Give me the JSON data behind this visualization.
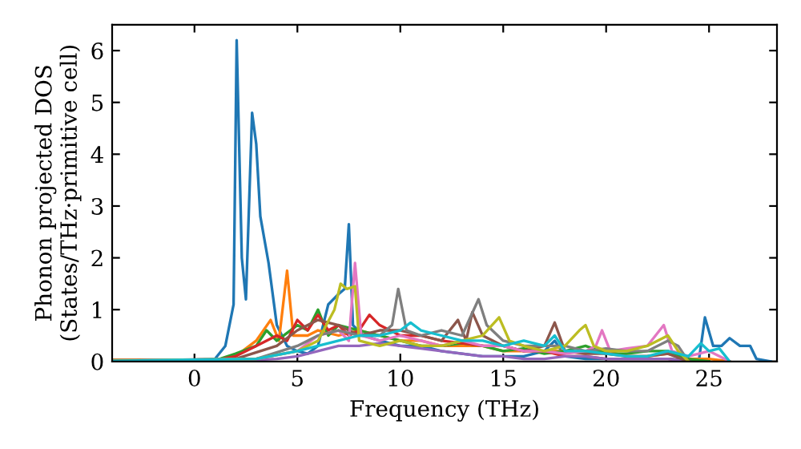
{
  "chart_data": {
    "type": "line",
    "xlabel": "Frequency (THz)",
    "ylabel": "Phonon projected DOS\n(States/THz·primitive cell)",
    "xlim": [
      -4,
      28.3
    ],
    "ylim": [
      0,
      6.5
    ],
    "xticks": [
      0,
      5,
      10,
      15,
      20,
      25
    ],
    "yticks": [
      0,
      1,
      2,
      3,
      4,
      5,
      6
    ],
    "grid": false,
    "legend": false,
    "marker": "none",
    "line_style": "solid",
    "series": [
      {
        "color": "#1f77b4",
        "x": [
          -4,
          0.5,
          1.0,
          1.5,
          1.9,
          2.05,
          2.3,
          2.5,
          2.8,
          3.0,
          3.2,
          3.6,
          4.0,
          4.5,
          5,
          5.5,
          6,
          6.5,
          7,
          7.3,
          7.5,
          7.7,
          8.2,
          9,
          10,
          11,
          12,
          13,
          14,
          15,
          16,
          17,
          17.5,
          18,
          19,
          20,
          22,
          23,
          24,
          24.5,
          24.8,
          25.2,
          25.6,
          26,
          26.5,
          27,
          27.3,
          28
        ],
        "values": [
          0.02,
          0.02,
          0.05,
          0.3,
          1.1,
          6.2,
          2.0,
          1.2,
          4.8,
          4.2,
          2.8,
          1.9,
          0.7,
          0.3,
          0.2,
          0.15,
          0.3,
          1.1,
          1.3,
          1.4,
          2.65,
          0.7,
          0.5,
          0.4,
          0.3,
          0.3,
          0.2,
          0.15,
          0.1,
          0.1,
          0.1,
          0.2,
          0.4,
          0.1,
          0.05,
          0.05,
          0.05,
          0.05,
          0.02,
          0.0,
          0.85,
          0.3,
          0.3,
          0.45,
          0.3,
          0.3,
          0.05,
          0.0
        ]
      },
      {
        "color": "#ff7f0e",
        "x": [
          -4,
          1,
          2,
          3,
          3.7,
          4.1,
          4.5,
          4.8,
          5.5,
          6,
          7,
          8,
          9,
          10,
          11,
          12,
          13,
          14,
          15,
          16,
          17,
          18,
          19,
          20,
          21,
          22,
          23,
          24,
          25,
          26
        ],
        "values": [
          0.03,
          0.03,
          0.1,
          0.4,
          0.8,
          0.4,
          1.75,
          0.5,
          0.5,
          0.6,
          0.5,
          0.6,
          0.5,
          0.4,
          0.4,
          0.3,
          0.3,
          0.3,
          0.2,
          0.2,
          0.2,
          0.2,
          0.15,
          0.2,
          0.1,
          0.1,
          0.15,
          0.05,
          0.05,
          0.0
        ]
      },
      {
        "color": "#2ca02c",
        "x": [
          -4,
          1,
          2,
          3,
          3.5,
          4,
          5,
          5.5,
          6,
          6.5,
          7,
          8,
          9,
          10,
          11,
          12,
          13,
          14,
          15,
          16,
          17,
          18,
          19,
          20,
          21,
          22,
          23,
          24,
          25
        ],
        "values": [
          0.02,
          0.02,
          0.15,
          0.3,
          0.6,
          0.4,
          0.7,
          0.6,
          1.0,
          0.5,
          0.7,
          0.6,
          0.5,
          0.4,
          0.3,
          0.3,
          0.35,
          0.3,
          0.2,
          0.25,
          0.15,
          0.2,
          0.3,
          0.15,
          0.15,
          0.2,
          0.2,
          0.05,
          0.0
        ]
      },
      {
        "color": "#d62728",
        "x": [
          -4,
          1,
          2,
          3,
          3.5,
          4,
          4.5,
          5,
          5.5,
          6,
          6.5,
          7,
          7.5,
          8,
          8.5,
          9,
          9.5,
          10,
          11,
          12,
          13,
          14,
          15,
          16,
          17,
          18,
          19,
          20,
          22,
          23,
          24
        ],
        "values": [
          0.02,
          0.02,
          0.1,
          0.3,
          0.4,
          0.5,
          0.4,
          0.8,
          0.6,
          0.9,
          0.6,
          0.7,
          0.5,
          0.6,
          0.9,
          0.7,
          0.6,
          0.5,
          0.5,
          0.4,
          0.35,
          0.3,
          0.3,
          0.2,
          0.2,
          0.1,
          0.1,
          0.05,
          0.05,
          0.05,
          0.0
        ]
      },
      {
        "color": "#9467bd",
        "x": [
          -4,
          2,
          4,
          5,
          6,
          7,
          8,
          9,
          10,
          11,
          12,
          13,
          14,
          15,
          16,
          17,
          18,
          19,
          20,
          21,
          22,
          23,
          24
        ],
        "values": [
          0.01,
          0.01,
          0.05,
          0.1,
          0.2,
          0.3,
          0.3,
          0.35,
          0.3,
          0.25,
          0.2,
          0.15,
          0.1,
          0.1,
          0.05,
          0.05,
          0.1,
          0.1,
          0.05,
          0.05,
          0.05,
          0.05,
          0.0
        ]
      },
      {
        "color": "#8c564b",
        "x": [
          -4,
          2,
          4,
          5,
          6,
          7,
          8,
          9,
          10,
          11,
          12,
          12.8,
          13.2,
          13.5,
          14,
          15,
          16,
          17,
          17.5,
          18,
          19,
          20,
          21,
          22,
          23,
          24
        ],
        "values": [
          0.01,
          0.05,
          0.3,
          0.6,
          0.8,
          0.7,
          0.5,
          0.6,
          0.6,
          0.5,
          0.4,
          0.8,
          0.4,
          0.95,
          0.5,
          0.3,
          0.2,
          0.3,
          0.75,
          0.2,
          0.15,
          0.15,
          0.1,
          0.1,
          0.15,
          0.0
        ]
      },
      {
        "color": "#e377c2",
        "x": [
          -4,
          3,
          5,
          6,
          7,
          7.5,
          7.8,
          8.1,
          9,
          10,
          11,
          12,
          13,
          14,
          15,
          16,
          17,
          18,
          19,
          19.5,
          19.8,
          20.2,
          21,
          22,
          22.8,
          23.2,
          24,
          25,
          25.5,
          26
        ],
        "values": [
          0.01,
          0.05,
          0.2,
          0.5,
          0.6,
          0.4,
          1.9,
          0.5,
          0.4,
          0.5,
          0.4,
          0.3,
          0.4,
          0.3,
          0.3,
          0.2,
          0.2,
          0.15,
          0.2,
          0.3,
          0.6,
          0.2,
          0.25,
          0.3,
          0.7,
          0.2,
          0.1,
          0.2,
          0.1,
          0.0
        ]
      },
      {
        "color": "#7f7f7f",
        "x": [
          -4,
          3,
          5,
          6,
          7,
          8,
          9,
          9.6,
          9.9,
          10.3,
          11,
          12,
          13,
          13.8,
          14.2,
          15,
          16,
          17,
          18,
          19,
          20,
          21,
          22,
          23,
          23.5,
          24
        ],
        "values": [
          0.01,
          0.05,
          0.3,
          0.5,
          0.6,
          0.5,
          0.5,
          0.7,
          1.4,
          0.6,
          0.5,
          0.6,
          0.5,
          1.2,
          0.7,
          0.4,
          0.3,
          0.3,
          0.3,
          0.2,
          0.25,
          0.2,
          0.2,
          0.4,
          0.3,
          0.0
        ]
      },
      {
        "color": "#bcbd22",
        "x": [
          -4,
          3,
          5,
          6,
          6.8,
          7.1,
          7.4,
          7.8,
          8,
          9,
          10,
          11,
          12,
          13,
          14,
          14.8,
          15.3,
          16,
          17,
          18,
          18.7,
          19.0,
          19.4,
          20,
          21,
          22,
          23,
          23.5,
          24
        ],
        "values": [
          0.01,
          0.05,
          0.2,
          0.4,
          1.0,
          1.5,
          1.4,
          1.45,
          0.4,
          0.3,
          0.4,
          0.3,
          0.3,
          0.4,
          0.5,
          0.85,
          0.4,
          0.3,
          0.2,
          0.3,
          0.6,
          0.7,
          0.3,
          0.2,
          0.2,
          0.3,
          0.5,
          0.2,
          0.0
        ]
      },
      {
        "color": "#17becf",
        "x": [
          -4,
          3,
          5,
          6,
          7,
          8,
          9,
          10,
          10.5,
          11,
          12,
          13,
          14,
          15,
          16,
          17,
          17.5,
          18,
          19,
          20,
          21,
          22,
          23,
          24,
          24.6,
          25,
          25.5,
          26
        ],
        "values": [
          0.01,
          0.05,
          0.2,
          0.3,
          0.4,
          0.5,
          0.5,
          0.6,
          0.75,
          0.6,
          0.5,
          0.4,
          0.4,
          0.3,
          0.4,
          0.3,
          0.5,
          0.2,
          0.2,
          0.15,
          0.1,
          0.1,
          0.2,
          0.1,
          0.35,
          0.2,
          0.25,
          0.0
        ]
      }
    ]
  }
}
